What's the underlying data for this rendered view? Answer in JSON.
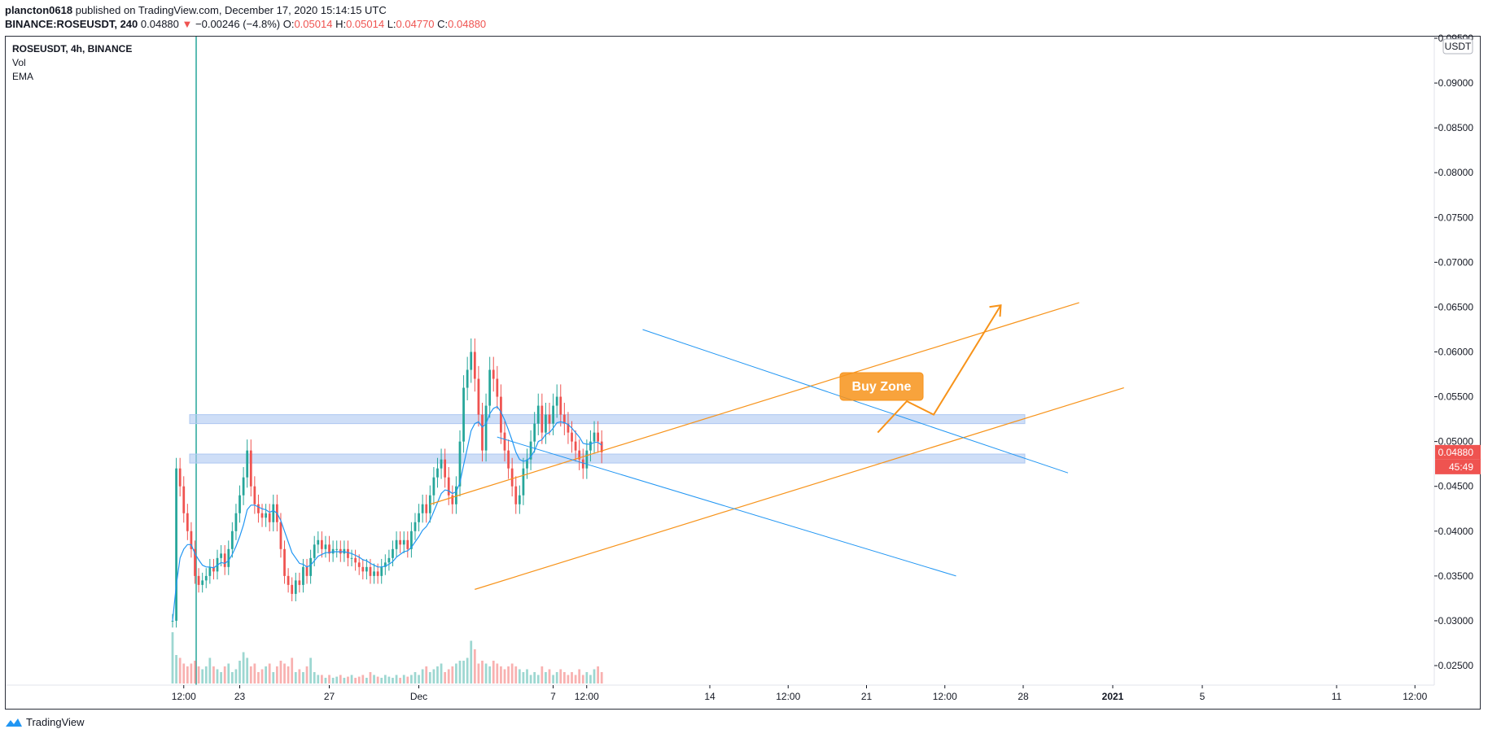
{
  "header": {
    "author": "plancton0618",
    "published_text": "published on TradingView.com, December 17, 2020 15:14:15 UTC"
  },
  "ohlc": {
    "symbol_line": "BINANCE:ROSEUSDT, 240",
    "last": "0.04880",
    "arrow": "▼",
    "change": "−0.00246 (−4.8%)",
    "o_label": "O:",
    "o": "0.05014",
    "h_label": "H:",
    "h": "0.05014",
    "l_label": "L:",
    "l": "0.04770",
    "c_label": "C:",
    "c": "0.04880"
  },
  "legend": {
    "symbol": "ROSEUSDT, 4h, BINANCE",
    "vol": "Vol",
    "ema": "EMA"
  },
  "price_axis": {
    "currency": "USDT",
    "last_price_label": "0.04880",
    "countdown_label": "45:49",
    "tick_labels": [
      "0.09500",
      "0.09000",
      "0.08500",
      "0.08000",
      "0.07500",
      "0.07000",
      "0.06500",
      "0.06000",
      "0.05500",
      "0.05000",
      "0.04500",
      "0.04000",
      "0.03500",
      "0.03000",
      "0.02500"
    ]
  },
  "time_axis": {
    "tick_labels": [
      "12:00",
      "23",
      "27",
      "Dec",
      "7",
      "12:00",
      "14",
      "12:00",
      "21",
      "12:00",
      "28",
      "2021",
      "5",
      "11",
      "12:00"
    ]
  },
  "annotation": {
    "buy_zone": "Buy Zone"
  },
  "footer": {
    "brand": "TradingView"
  },
  "colors": {
    "up": "#26a69a",
    "down": "#ef5350",
    "ema": "#2196f3",
    "channel": "#f7931a",
    "trend": "#2196f3",
    "zone": "#aec8f2",
    "callout": "#f7931a"
  },
  "chart_data": {
    "type": "candlestick",
    "symbol": "ROSEUSDT",
    "timeframe": "4h",
    "exchange": "BINANCE",
    "y_range": [
      0.024,
      0.096
    ],
    "x_range_days": [
      0,
      56.5
    ],
    "x_ticks_days": [
      0.5,
      3,
      7,
      11,
      17,
      18.5,
      24,
      27.5,
      31,
      34.5,
      38,
      42,
      46,
      52,
      55.5
    ],
    "candles_x_start_days": 0.0,
    "candles_step_days": 0.1667,
    "closes": [
      0.03,
      0.047,
      0.045,
      0.042,
      0.04,
      0.038,
      0.035,
      0.034,
      0.0345,
      0.035,
      0.036,
      0.0355,
      0.037,
      0.0375,
      0.036,
      0.038,
      0.04,
      0.042,
      0.044,
      0.046,
      0.049,
      0.045,
      0.043,
      0.042,
      0.0415,
      0.042,
      0.041,
      0.043,
      0.041,
      0.038,
      0.035,
      0.034,
      0.033,
      0.0345,
      0.034,
      0.036,
      0.035,
      0.037,
      0.0385,
      0.039,
      0.038,
      0.0385,
      0.0375,
      0.038,
      0.038,
      0.0375,
      0.038,
      0.037,
      0.037,
      0.0365,
      0.036,
      0.0355,
      0.036,
      0.035,
      0.0355,
      0.035,
      0.036,
      0.0365,
      0.037,
      0.038,
      0.039,
      0.0385,
      0.039,
      0.038,
      0.04,
      0.041,
      0.042,
      0.043,
      0.042,
      0.044,
      0.046,
      0.047,
      0.048,
      0.046,
      0.044,
      0.043,
      0.045,
      0.05,
      0.056,
      0.058,
      0.06,
      0.057,
      0.053,
      0.049,
      0.054,
      0.058,
      0.057,
      0.055,
      0.051,
      0.049,
      0.047,
      0.045,
      0.043,
      0.044,
      0.047,
      0.048,
      0.05,
      0.052,
      0.054,
      0.051,
      0.053,
      0.052,
      0.054,
      0.055,
      0.053,
      0.052,
      0.051,
      0.05,
      0.049,
      0.048,
      0.047,
      0.049,
      0.05,
      0.051,
      0.05,
      0.0488
    ],
    "ema_values": [
      0.03,
      0.034,
      0.037,
      0.038,
      0.0385,
      0.0385,
      0.0375,
      0.0368,
      0.0362,
      0.036,
      0.036,
      0.0359,
      0.0362,
      0.0365,
      0.0364,
      0.0367,
      0.0374,
      0.0383,
      0.0394,
      0.0407,
      0.0424,
      0.0429,
      0.0429,
      0.0427,
      0.0425,
      0.0424,
      0.0421,
      0.0423,
      0.042,
      0.0412,
      0.04,
      0.0388,
      0.0376,
      0.037,
      0.0364,
      0.0363,
      0.036,
      0.0362,
      0.0367,
      0.0372,
      0.0374,
      0.0376,
      0.0376,
      0.0377,
      0.0377,
      0.0377,
      0.0377,
      0.0376,
      0.0375,
      0.0373,
      0.0371,
      0.0368,
      0.0367,
      0.0364,
      0.0362,
      0.036,
      0.036,
      0.0361,
      0.0363,
      0.0366,
      0.0371,
      0.0374,
      0.0377,
      0.0378,
      0.0382,
      0.0388,
      0.0394,
      0.0401,
      0.0405,
      0.0412,
      0.0422,
      0.0432,
      0.0442,
      0.0446,
      0.0445,
      0.0442,
      0.0444,
      0.0454,
      0.0474,
      0.0493,
      0.0512,
      0.052,
      0.0522,
      0.0516,
      0.052,
      0.0531,
      0.0537,
      0.0539,
      0.0533,
      0.0524,
      0.0513,
      0.0501,
      0.0488,
      0.048,
      0.0478,
      0.0479,
      0.0483,
      0.049,
      0.05,
      0.0502,
      0.0508,
      0.051,
      0.0515,
      0.0521,
      0.0522,
      0.0521,
      0.0519,
      0.0515,
      0.051,
      0.0505,
      0.0498,
      0.0497,
      0.0497,
      0.0499,
      0.0499,
      0.0496
    ],
    "volumes_rel": [
      0.9,
      0.5,
      0.45,
      0.35,
      0.3,
      0.35,
      0.4,
      0.3,
      0.25,
      0.3,
      0.45,
      0.3,
      0.25,
      0.2,
      0.3,
      0.35,
      0.2,
      0.25,
      0.4,
      0.55,
      0.45,
      0.3,
      0.35,
      0.2,
      0.25,
      0.3,
      0.35,
      0.2,
      0.3,
      0.4,
      0.35,
      0.3,
      0.45,
      0.2,
      0.25,
      0.2,
      0.3,
      0.45,
      0.2,
      0.15,
      0.15,
      0.1,
      0.15,
      0.1,
      0.12,
      0.15,
      0.1,
      0.12,
      0.15,
      0.1,
      0.12,
      0.15,
      0.1,
      0.2,
      0.15,
      0.12,
      0.1,
      0.15,
      0.12,
      0.1,
      0.15,
      0.1,
      0.15,
      0.12,
      0.15,
      0.2,
      0.15,
      0.25,
      0.3,
      0.2,
      0.25,
      0.3,
      0.35,
      0.2,
      0.25,
      0.3,
      0.35,
      0.4,
      0.4,
      0.45,
      0.75,
      0.6,
      0.35,
      0.4,
      0.35,
      0.3,
      0.4,
      0.35,
      0.3,
      0.25,
      0.3,
      0.35,
      0.3,
      0.25,
      0.2,
      0.25,
      0.15,
      0.2,
      0.15,
      0.3,
      0.2,
      0.25,
      0.15,
      0.2,
      0.25,
      0.2,
      0.15,
      0.2,
      0.15,
      0.25,
      0.15,
      0.2,
      0.15,
      0.25,
      0.3,
      0.2
    ],
    "support_zones": [
      [
        0.0476,
        0.0486
      ],
      [
        0.052,
        0.053
      ]
    ],
    "channel_lines": [
      {
        "from": [
          11.5,
          0.043
        ],
        "to": [
          40.5,
          0.0655
        ]
      },
      {
        "from": [
          13.5,
          0.0335
        ],
        "to": [
          42.5,
          0.056
        ]
      }
    ],
    "trend_lines": [
      {
        "from": [
          21.0,
          0.0625
        ],
        "to": [
          40.0,
          0.0465
        ]
      },
      {
        "from": [
          14.5,
          0.0505
        ],
        "to": [
          35.0,
          0.035
        ]
      }
    ],
    "projection_path": [
      [
        31.5,
        0.051
      ],
      [
        32.8,
        0.0545
      ],
      [
        34.0,
        0.053
      ],
      [
        37.0,
        0.0652
      ]
    ]
  }
}
